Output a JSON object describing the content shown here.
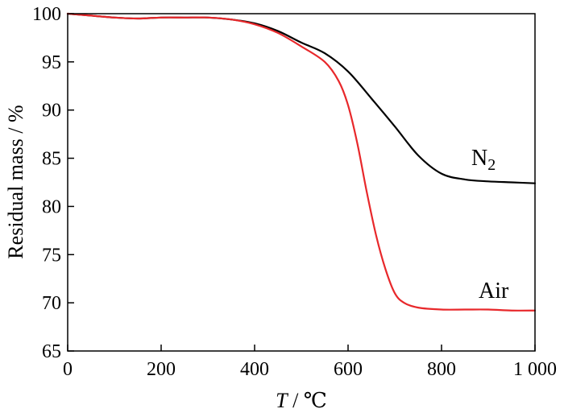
{
  "chart_data": {
    "type": "line",
    "title": "",
    "xlabel_var": "T",
    "xlabel_unit": " / ℃",
    "ylabel": "Residual mass / %",
    "xlim": [
      0,
      1000
    ],
    "ylim": [
      65,
      100
    ],
    "x_ticks": [
      0,
      200,
      400,
      600,
      800,
      1000
    ],
    "x_tick_labels": [
      "0",
      "200",
      "400",
      "600",
      "800",
      "1 000"
    ],
    "y_ticks": [
      65,
      70,
      75,
      80,
      85,
      90,
      95,
      100
    ],
    "y_tick_labels": [
      "65",
      "70",
      "75",
      "80",
      "85",
      "90",
      "95",
      "100"
    ],
    "grid": false,
    "legend": "inline labels",
    "series": [
      {
        "name": "N2",
        "label_main": "N",
        "label_sub": "2",
        "color": "#000000",
        "x": [
          0,
          50,
          100,
          150,
          200,
          250,
          300,
          350,
          400,
          450,
          500,
          550,
          600,
          650,
          700,
          750,
          800,
          850,
          900,
          950,
          1000
        ],
        "y": [
          100,
          99.8,
          99.6,
          99.5,
          99.6,
          99.6,
          99.6,
          99.4,
          99.0,
          98.2,
          97.0,
          95.9,
          94.0,
          91.2,
          88.3,
          85.3,
          83.4,
          82.8,
          82.6,
          82.5,
          82.4
        ]
      },
      {
        "name": "Air",
        "label_main": "Air",
        "label_sub": "",
        "color": "#e8282b",
        "x": [
          0,
          50,
          100,
          150,
          200,
          250,
          300,
          350,
          400,
          450,
          500,
          550,
          580,
          600,
          620,
          640,
          660,
          680,
          700,
          720,
          750,
          800,
          850,
          900,
          950,
          1000
        ],
        "y": [
          100,
          99.8,
          99.6,
          99.5,
          99.6,
          99.6,
          99.6,
          99.4,
          98.9,
          98.0,
          96.6,
          95.0,
          93.0,
          90.5,
          86.5,
          81.5,
          77.0,
          73.5,
          71.0,
          70.0,
          69.5,
          69.3,
          69.3,
          69.3,
          69.2,
          69.2
        ]
      }
    ]
  }
}
